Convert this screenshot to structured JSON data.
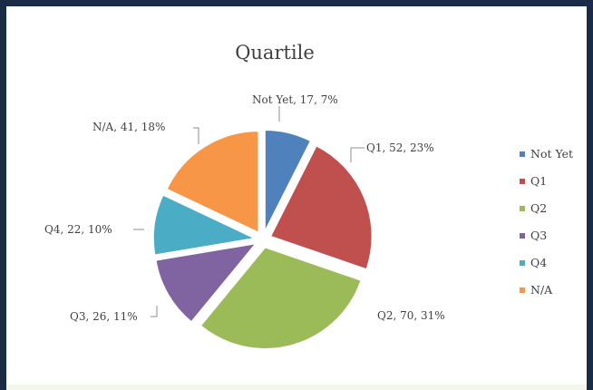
{
  "chart_data": {
    "type": "pie",
    "title": "Quartile",
    "categories": [
      "Not Yet",
      "Q1",
      "Q2",
      "Q3",
      "Q4",
      "N/A"
    ],
    "values": [
      17,
      52,
      70,
      26,
      22,
      41
    ],
    "percent_labels": [
      "7%",
      "23%",
      "31%",
      "11%",
      "10%",
      "18%"
    ],
    "data_labels": [
      "Not Yet, 17, 7%",
      "Q1, 52, 23%",
      "Q2, 70, 31%",
      "Q3, 26, 11%",
      "Q4, 22, 10%",
      "N/A, 41, 18%"
    ],
    "colors": [
      "#4f81bd",
      "#c0504d",
      "#9bbb59",
      "#8064a2",
      "#4bacc6",
      "#f79646"
    ],
    "legend": {
      "position": "right",
      "entries": [
        "Not Yet",
        "Q1",
        "Q2",
        "Q3",
        "Q4",
        "N/A"
      ]
    },
    "exploded": true,
    "start_angle": "12 o'clock, clockwise"
  }
}
